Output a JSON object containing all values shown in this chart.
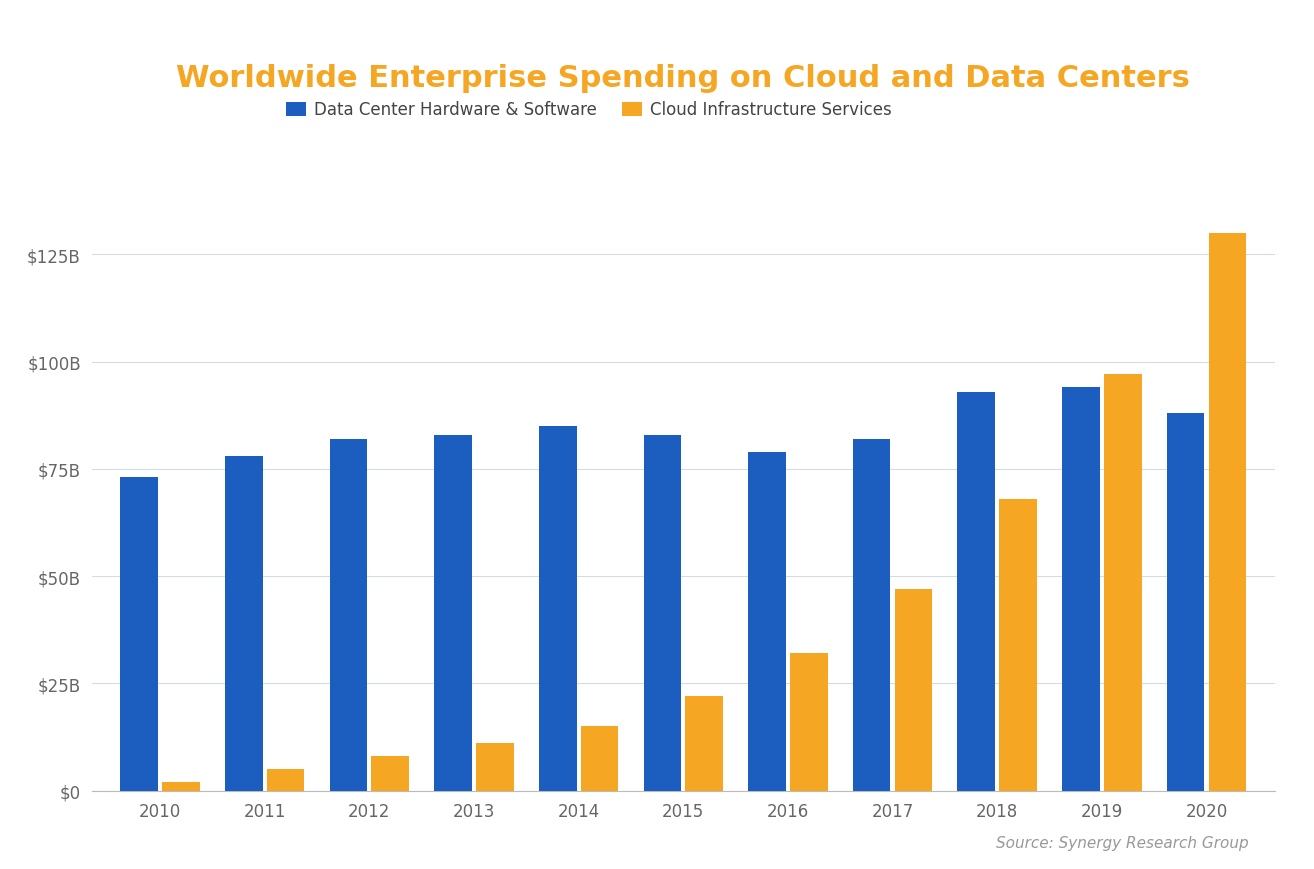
{
  "title": "Worldwide Enterprise Spending on Cloud and Data Centers",
  "title_color": "#F5A623",
  "years": [
    2010,
    2011,
    2012,
    2013,
    2014,
    2015,
    2016,
    2017,
    2018,
    2019,
    2020
  ],
  "datacenter": [
    73,
    78,
    82,
    83,
    85,
    83,
    79,
    82,
    93,
    94,
    88
  ],
  "cloud": [
    2,
    5,
    8,
    11,
    15,
    22,
    32,
    47,
    68,
    97,
    130
  ],
  "datacenter_color": "#1B5EBF",
  "cloud_color": "#F5A623",
  "legend_datacenter": "Data Center Hardware & Software",
  "legend_cloud": "Cloud Infrastructure Services",
  "ylim": [
    0,
    148
  ],
  "yticks": [
    0,
    25,
    50,
    75,
    100,
    125
  ],
  "ytick_labels": [
    "$0",
    "$25B",
    "$50B",
    "$75B",
    "$100B",
    "$125B"
  ],
  "source": "Source: Synergy Research Group",
  "background_color": "#FFFFFF",
  "gridline_color": "#D5DCE8",
  "bar_width": 0.36,
  "title_fontsize": 22,
  "tick_fontsize": 12,
  "legend_fontsize": 12,
  "source_fontsize": 11
}
